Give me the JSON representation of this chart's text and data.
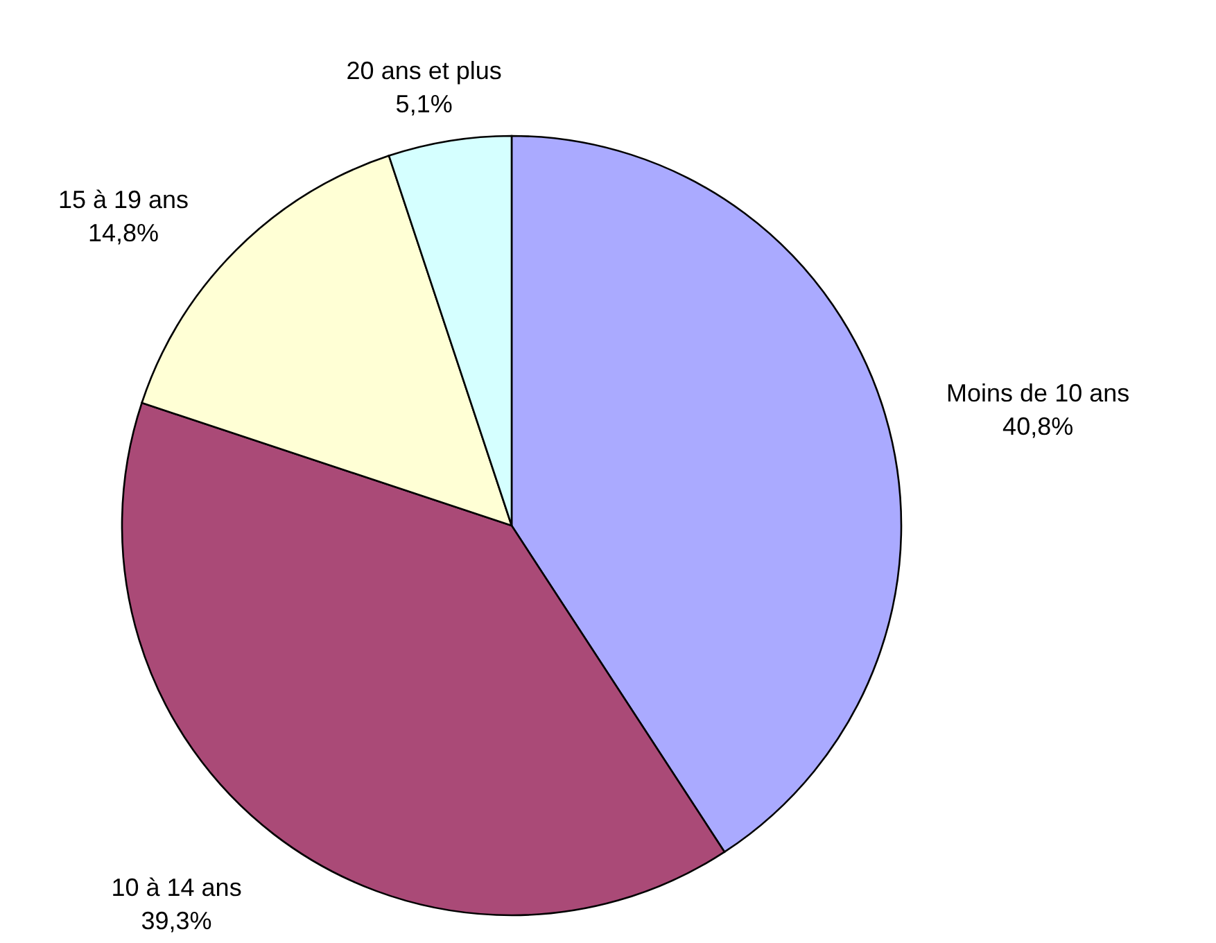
{
  "chart_data": {
    "type": "pie",
    "categories": [
      "Moins de 10 ans",
      "10 à 14 ans",
      "15 à 19 ans",
      "20 ans et plus"
    ],
    "values": [
      40.8,
      39.3,
      14.8,
      5.1
    ],
    "value_labels": [
      "40,8%",
      "39,3%",
      "14,8%",
      "5,1%"
    ],
    "colors": [
      "#aaaaff",
      "#aa4a77",
      "#ffffd5",
      "#d5ffff"
    ],
    "legend": false
  }
}
